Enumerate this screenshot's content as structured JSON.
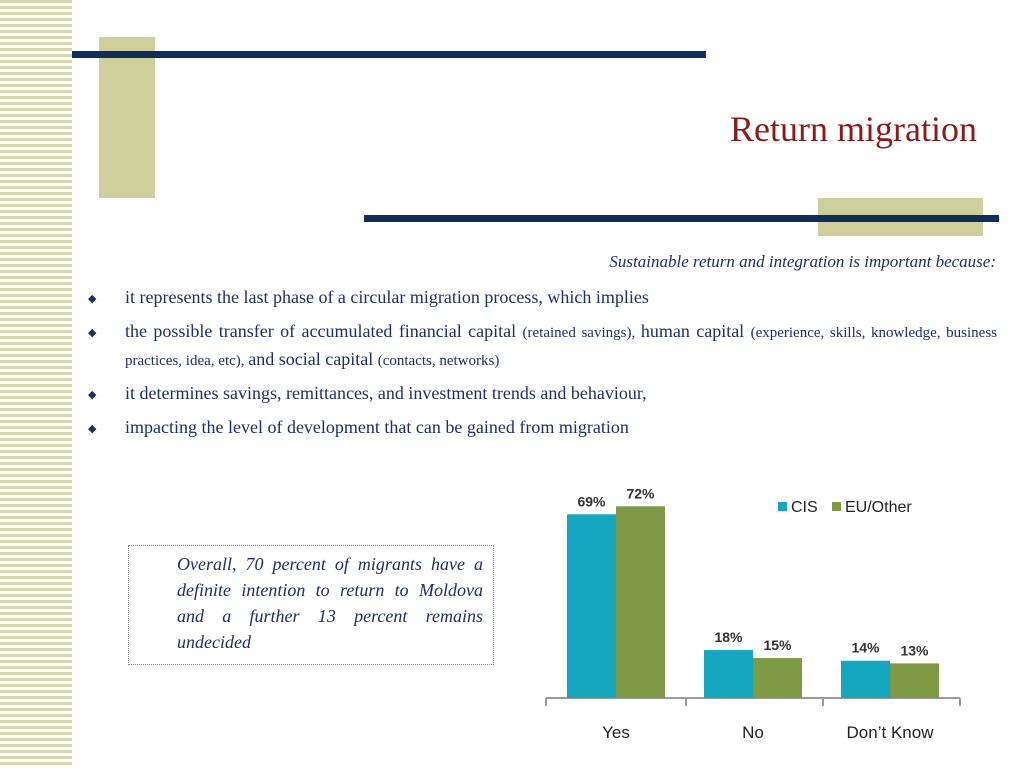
{
  "slide": {
    "title": "Return migration",
    "subtitle": "Sustainable return and integration is important because:",
    "bullets": [
      {
        "parts": [
          {
            "text": "it represents the last phase of a circular migration process, which implies",
            "small": false
          }
        ]
      },
      {
        "parts": [
          {
            "text": "the possible transfer of accumulated financial capital ",
            "small": false
          },
          {
            "text": "(retained savings), ",
            "small": true
          },
          {
            "text": "human capital ",
            "small": false
          },
          {
            "text": "(experience, skills, knowledge, business practices, idea, etc), ",
            "small": true
          },
          {
            "text": "and social capital ",
            "small": false
          },
          {
            "text": "(contacts, networks)",
            "small": true
          }
        ]
      },
      {
        "parts": [
          {
            "text": "it determines savings, remittances, and investment trends and behaviour,",
            "small": false
          }
        ]
      },
      {
        "parts": [
          {
            "text": "impacting the level of development that can be gained from migration",
            "small": false
          }
        ]
      }
    ],
    "note": "Overall, 70 percent of migrants have a definite intention to return to Moldova and a further 13 percent remains undecided",
    "bullet_icon": "diamond-bullet-icon"
  },
  "colors": {
    "title": "#8b1a1a",
    "text": "#1b2f6b",
    "navy": "#0f2e5c",
    "khaki": "#cfcf9b",
    "cis": "#16a7c0",
    "eu": "#7f9a44"
  },
  "chart_data": {
    "type": "bar",
    "categories": [
      "Yes",
      "No",
      "Don’t Know"
    ],
    "series": [
      {
        "name": "CIS",
        "values": [
          69,
          18,
          14
        ],
        "labels": [
          "69%",
          "18%",
          "14%"
        ],
        "color": "#16a7c0"
      },
      {
        "name": "EU/Other",
        "values": [
          72,
          15,
          13
        ],
        "labels": [
          "72%",
          "15%",
          "13%"
        ],
        "color": "#7f9a44"
      }
    ],
    "ylim": [
      0,
      80
    ],
    "legend": "top-right",
    "grid": false
  }
}
